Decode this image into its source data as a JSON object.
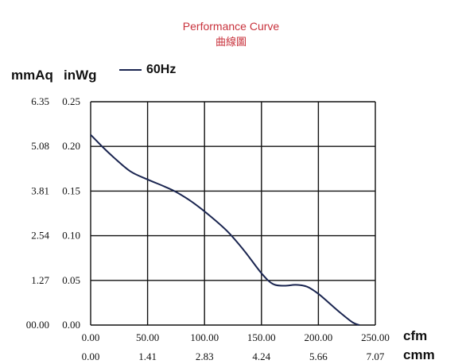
{
  "chart_data": {
    "type": "line",
    "title": "Performance Curve",
    "subtitle": "曲線圖",
    "ylabel_left": "mmAq",
    "ylabel_right": "inWg",
    "xlabel_top": "cfm",
    "xlabel_bottom": "cmm",
    "xlim": [
      0,
      250
    ],
    "ylim": [
      0,
      0.25
    ],
    "grid": true,
    "legend_placement": "top-left",
    "x_ticks_cfm": [
      "0.00",
      "50.00",
      "100.00",
      "150.00",
      "200.00",
      "250.00"
    ],
    "x_ticks_cmm": [
      "0.00",
      "1.41",
      "2.83",
      "4.24",
      "5.66",
      "7.07"
    ],
    "y_ticks_inwg": [
      "0.00",
      "0.05",
      "0.10",
      "0.15",
      "0.20",
      "0.25"
    ],
    "y_ticks_mmaq": [
      "00.00",
      "1.27",
      "2.54",
      "3.81",
      "5.08",
      "6.35"
    ],
    "series": [
      {
        "name": "60Hz",
        "color": "#1a2550",
        "x": [
          0,
          10,
          20,
          35,
          50,
          65,
          75,
          90,
          105,
          120,
          135,
          150,
          160,
          170,
          180,
          190,
          200,
          210,
          220,
          230,
          236
        ],
        "y": [
          0.213,
          0.2,
          0.188,
          0.172,
          0.163,
          0.155,
          0.149,
          0.137,
          0.122,
          0.105,
          0.083,
          0.058,
          0.046,
          0.044,
          0.045,
          0.043,
          0.035,
          0.024,
          0.013,
          0.003,
          0.0
        ]
      }
    ]
  }
}
